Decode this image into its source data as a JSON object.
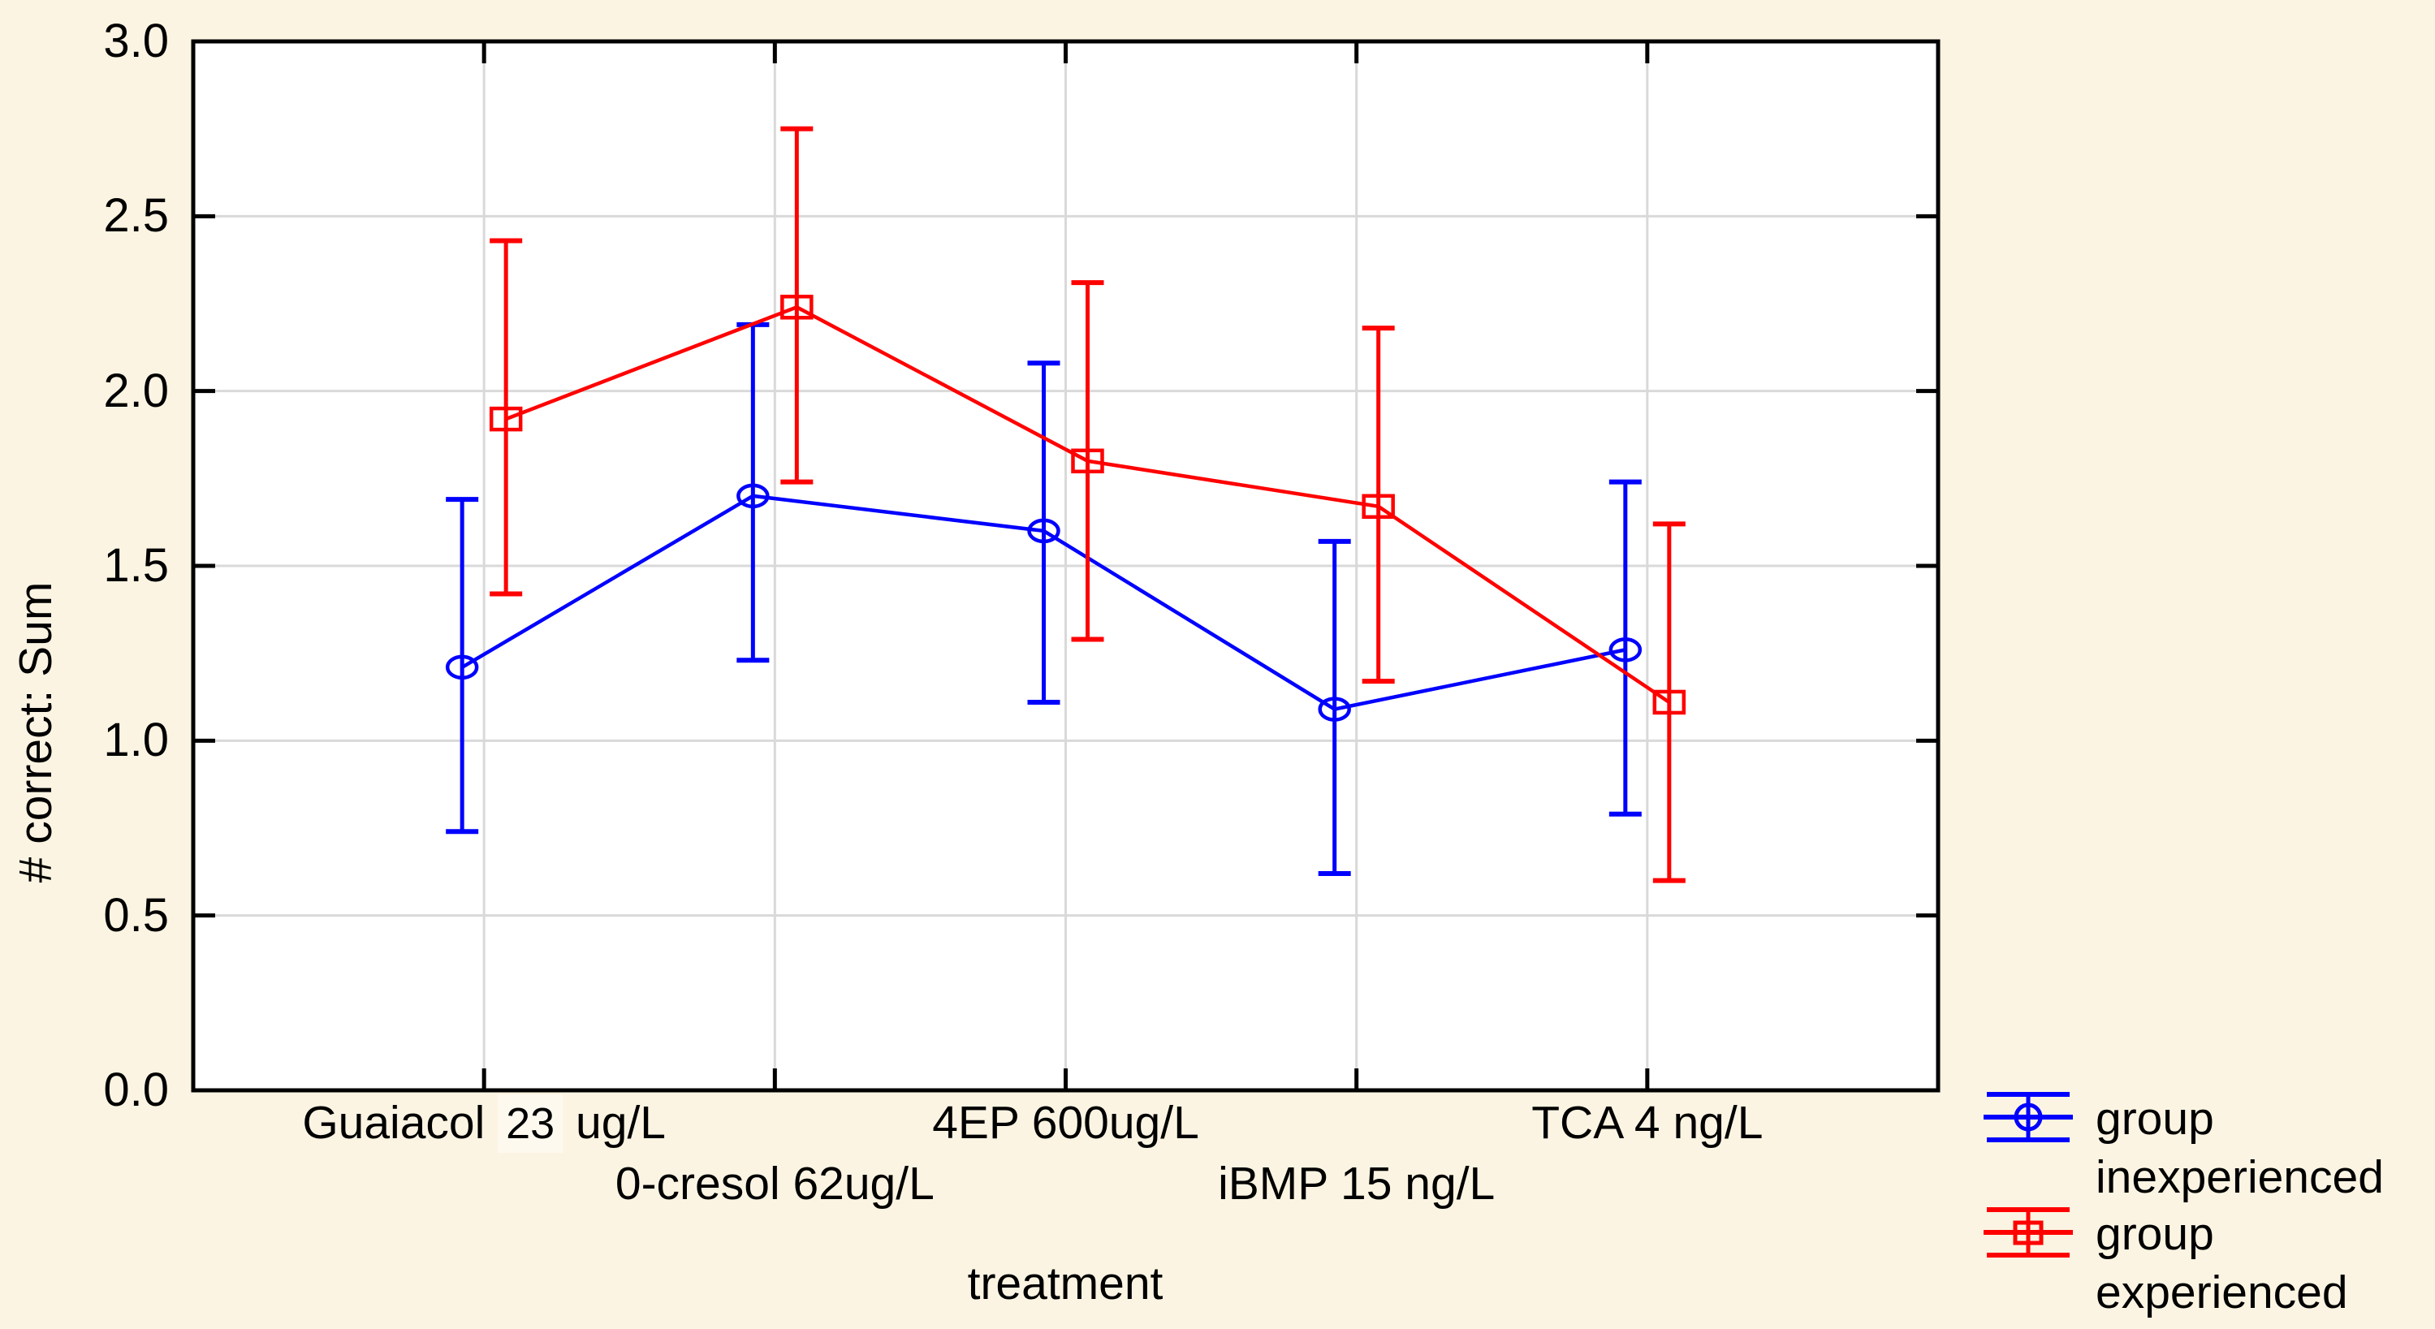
{
  "figure": {
    "background_color": "#FBF4E2",
    "plot_background": "#FFFFFF",
    "grid_color": "#D9D9D9",
    "axis_color": "#000000"
  },
  "chart_data": {
    "type": "line",
    "title": "",
    "xlabel": "treatment",
    "ylabel": "# correct: Sum",
    "categories": [
      "Guaiacol 23 ug/L",
      "0-cresol 62ug/L",
      "4EP 600ug/L",
      "iBMP 15 ng/L",
      "TCA 4 ng/L"
    ],
    "category_label_rows": [
      0,
      1,
      0,
      1,
      0
    ],
    "category_display": [
      {
        "pre": "Guaiacol ",
        "highlight": "23",
        "post": " ug/L"
      },
      {
        "pre": "0-cresol 62ug/L",
        "highlight": "",
        "post": ""
      },
      {
        "pre": "4EP 600ug/L",
        "highlight": "",
        "post": ""
      },
      {
        "pre": "iBMP 15 ng/L",
        "highlight": "",
        "post": ""
      },
      {
        "pre": "TCA 4 ng/L",
        "highlight": "",
        "post": ""
      }
    ],
    "ylim": [
      0.0,
      3.0
    ],
    "ytick_step": 0.5,
    "ytick_labels": [
      "0.0",
      "0.5",
      "1.0",
      "1.5",
      "2.0",
      "2.5",
      "3.0"
    ],
    "grid": true,
    "legend_position": "bottom-right-outside",
    "series": [
      {
        "name": "group inexperienced",
        "legend_lines": [
          "group",
          "inexperienced"
        ],
        "color": "#0000FF",
        "marker": "circle",
        "x_offset": -27,
        "values": [
          1.21,
          1.7,
          1.6,
          1.09,
          1.26
        ],
        "ci_low": [
          0.74,
          1.23,
          1.11,
          0.62,
          0.79
        ],
        "ci_high": [
          1.69,
          2.19,
          2.08,
          1.57,
          1.74
        ]
      },
      {
        "name": "group experienced",
        "legend_lines": [
          "group",
          "experienced"
        ],
        "color": "#FF0000",
        "marker": "square",
        "x_offset": 27,
        "values": [
          1.92,
          2.24,
          1.8,
          1.67,
          1.11
        ],
        "ci_low": [
          1.42,
          1.74,
          1.29,
          1.17,
          0.6
        ],
        "ci_high": [
          2.43,
          2.75,
          2.31,
          2.18,
          1.62
        ]
      }
    ]
  }
}
